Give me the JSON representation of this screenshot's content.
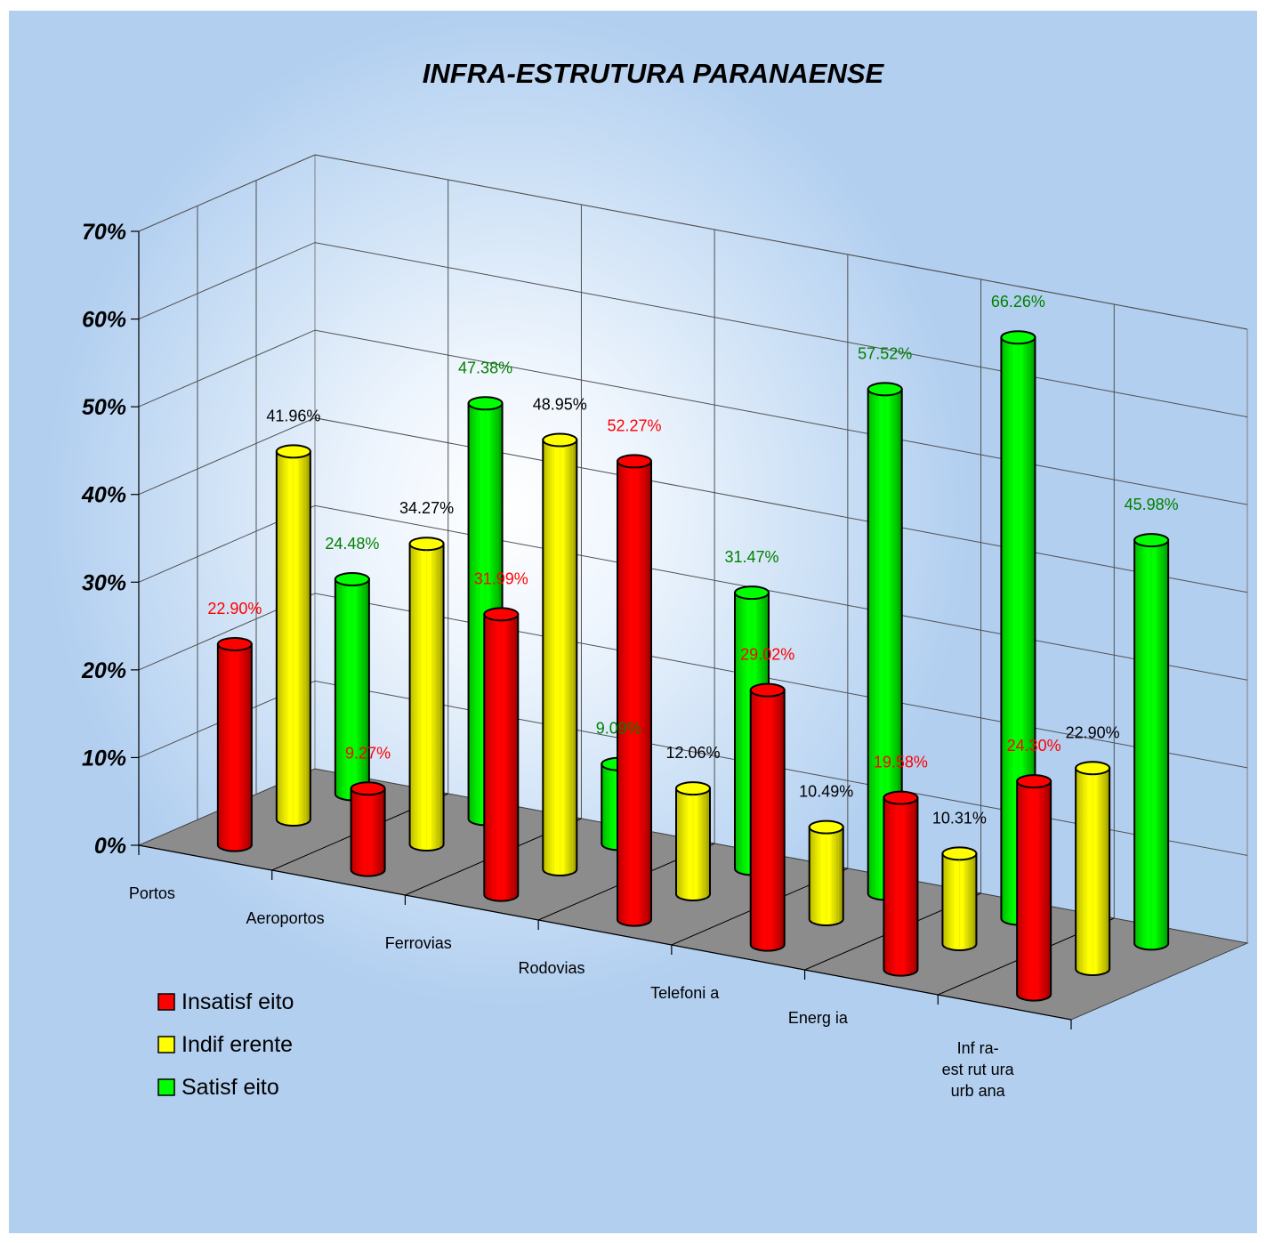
{
  "chart_data": {
    "type": "bar",
    "title": "INFRA-ESTRUTURA  PARANAENSE",
    "xlabel": "",
    "ylabel": "",
    "ylim": [
      0,
      0.7
    ],
    "y_ticks": [
      "0%",
      "10%",
      "20%",
      "30%",
      "40%",
      "50%",
      "60%",
      "70%"
    ],
    "categories": [
      "Portos",
      "Aeroportos",
      "Ferrovias",
      "Rodovias",
      "Telefoni a",
      "Energ ia",
      "Inf ra-\nest rut ura\nurb ana"
    ],
    "series": [
      {
        "name": "Insatisf eito",
        "color": "#ff0000",
        "label_color": "#ff0000",
        "values": [
          0.229,
          0.0927,
          0.3199,
          0.5227,
          0.2902,
          0.1958,
          0.243
        ],
        "labels": [
          "22.90%",
          "9.27%",
          "31.99%",
          "52.27%",
          "29.02%",
          "19.58%",
          "24.30%"
        ]
      },
      {
        "name": "Indif erente",
        "color": "#ffff00",
        "label_color": "#000000",
        "values": [
          0.4196,
          0.3427,
          0.4895,
          0.1206,
          0.1049,
          0.1031,
          0.229
        ],
        "labels": [
          "41.96%",
          "34.27%",
          "48.95%",
          "12.06%",
          "10.49%",
          "10.31%",
          "22.90%"
        ]
      },
      {
        "name": "Satisf eito",
        "color": "#00ff00",
        "label_color": "#008000",
        "values": [
          0.2448,
          0.4738,
          0.0909,
          0.3147,
          0.5752,
          0.6626,
          0.4598
        ],
        "labels": [
          "24.48%",
          "47.38%",
          "9.09%",
          "31.47%",
          "57.52%",
          "66.26%",
          "45.98%"
        ]
      }
    ],
    "legend": "bottom-left",
    "grid": true,
    "style": "3d-cylinder"
  }
}
